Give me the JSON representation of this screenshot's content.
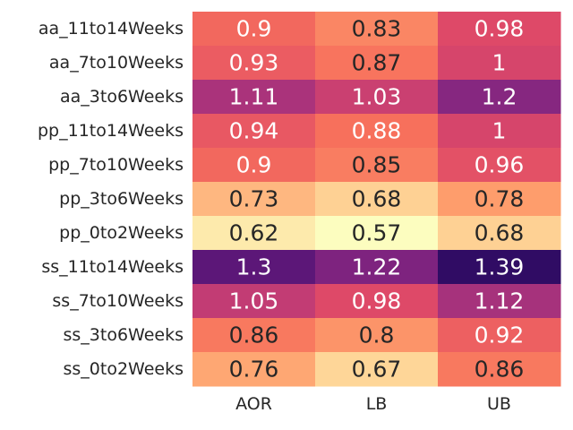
{
  "chart_data": {
    "type": "heatmap",
    "title": "",
    "xlabel": "",
    "ylabel": "",
    "columns": [
      "AOR",
      "LB",
      "UB"
    ],
    "rows": [
      "aa_11to14Weeks",
      "aa_7to10Weeks",
      "aa_3to6Weeks",
      "pp_11to14Weeks",
      "pp_7to10Weeks",
      "pp_3to6Weeks",
      "pp_0to2Weeks",
      "ss_11to14Weeks",
      "ss_7to10Weeks",
      "ss_3to6Weeks",
      "ss_0to2Weeks"
    ],
    "values": [
      [
        "0.9",
        "0.83",
        "0.98"
      ],
      [
        "0.93",
        "0.87",
        "1"
      ],
      [
        "1.11",
        "1.03",
        "1.2"
      ],
      [
        "0.94",
        "0.88",
        "1"
      ],
      [
        "0.9",
        "0.85",
        "0.96"
      ],
      [
        "0.73",
        "0.68",
        "0.78"
      ],
      [
        "0.62",
        "0.57",
        "0.68"
      ],
      [
        "1.3",
        "1.22",
        "1.39"
      ],
      [
        "1.05",
        "0.98",
        "1.12"
      ],
      [
        "0.86",
        "0.8",
        "0.92"
      ],
      [
        "0.76",
        "0.67",
        "0.86"
      ]
    ],
    "colormap": "magma_r",
    "value_range": [
      0.57,
      1.39
    ],
    "colorbar": false,
    "annotations": true
  }
}
